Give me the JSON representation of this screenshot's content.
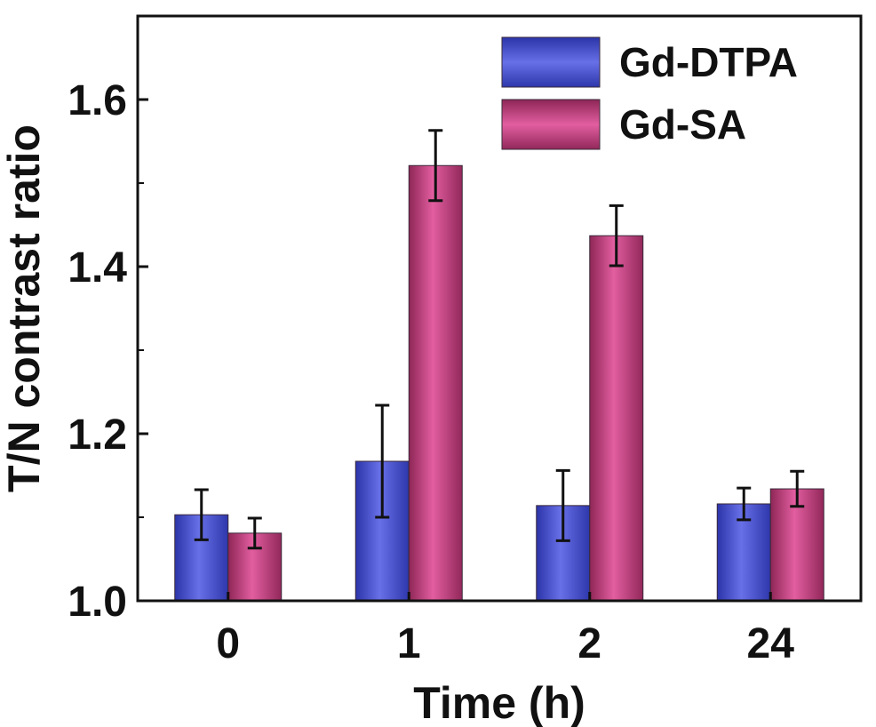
{
  "chart_data": {
    "type": "bar",
    "xlabel": "Time (h)",
    "ylabel": "T/N contrast ratio",
    "categories": [
      "0",
      "1",
      "2",
      "24"
    ],
    "ylim": [
      1.0,
      1.7
    ],
    "yticks": [
      "1.0",
      "1.2",
      "1.4",
      "1.6"
    ],
    "legend_position": "top-right",
    "grid": false,
    "series": [
      {
        "name": "Gd-DTPA",
        "color": "#4a55d6",
        "values": [
          1.103,
          1.167,
          1.114,
          1.116
        ],
        "errors": [
          0.03,
          0.067,
          0.042,
          0.019
        ]
      },
      {
        "name": "Gd-SA",
        "color": "#d8508f",
        "values": [
          1.081,
          1.521,
          1.437,
          1.134
        ],
        "errors": [
          0.018,
          0.042,
          0.036,
          0.021
        ]
      }
    ]
  }
}
